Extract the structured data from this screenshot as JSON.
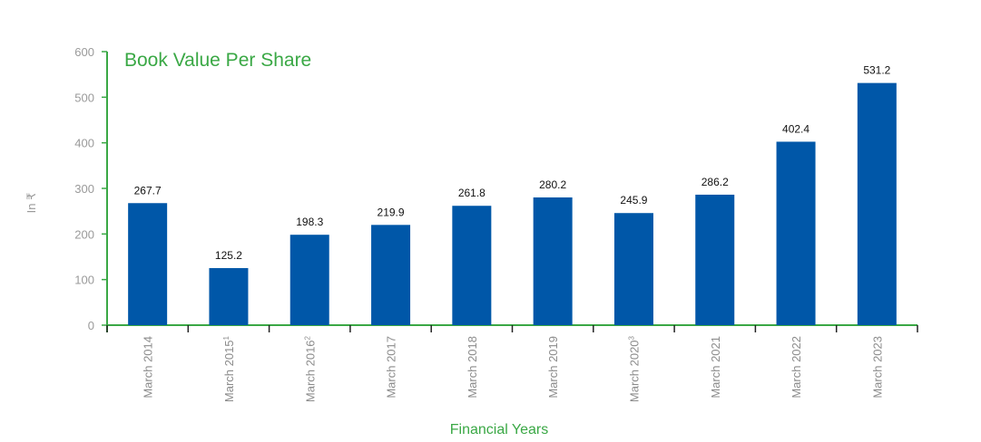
{
  "colors": {
    "accent": "#3aa845",
    "bar": "#0057a8",
    "axis": "#3aa845"
  },
  "chart_data": {
    "type": "bar",
    "title": "Book Value Per Share",
    "xlabel": "Financial Years",
    "ylabel": "In ₹",
    "ylim": [
      0,
      600
    ],
    "yticks": [
      0,
      100,
      200,
      300,
      400,
      500,
      600
    ],
    "grid": false,
    "categories": [
      {
        "label": "March 2014",
        "sup": ""
      },
      {
        "label": "March 2015",
        "sup": "1"
      },
      {
        "label": "March 2016",
        "sup": "2"
      },
      {
        "label": "March 2017",
        "sup": ""
      },
      {
        "label": "March 2018",
        "sup": ""
      },
      {
        "label": "March 2019",
        "sup": ""
      },
      {
        "label": "March 2020",
        "sup": "3"
      },
      {
        "label": "March 2021",
        "sup": ""
      },
      {
        "label": "March 2022",
        "sup": ""
      },
      {
        "label": "March 2023",
        "sup": ""
      }
    ],
    "values": [
      267.7,
      125.2,
      198.3,
      219.9,
      261.8,
      280.2,
      245.9,
      286.2,
      402.4,
      531.2
    ],
    "value_labels": [
      "267.7",
      "125.2",
      "198.3",
      "219.9",
      "261.8",
      "280.2",
      "245.9",
      "286.2",
      "402.4",
      "531.2"
    ]
  }
}
